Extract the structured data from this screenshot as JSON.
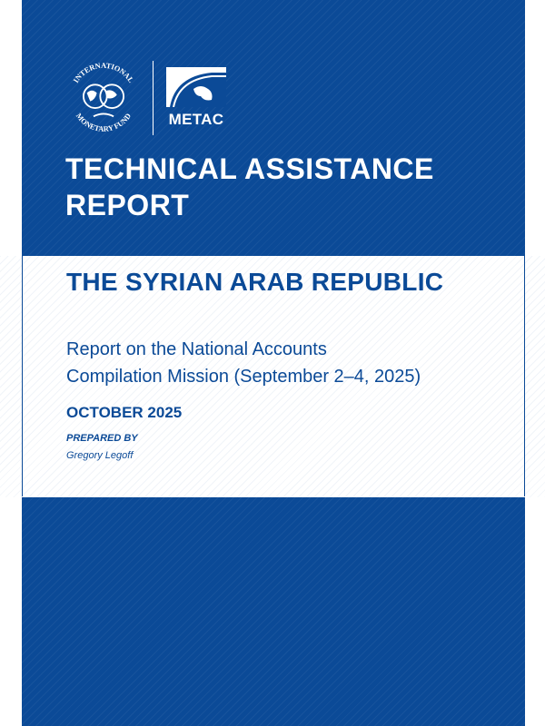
{
  "logos": {
    "imf": "INTERNATIONAL MONETARY FUND",
    "metac": "METAC"
  },
  "cover": {
    "title_line1": "TECHNICAL ASSISTANCE",
    "title_line2": "REPORT",
    "country": "THE SYRIAN ARAB REPUBLIC",
    "subtitle_line1": "Report on the National Accounts",
    "subtitle_line2": "Compilation Mission (September 2–4, 2025)",
    "date": "OCTOBER 2025",
    "prepared_by_label": "PREPARED BY",
    "author": "Gregory Legoff"
  },
  "colors": {
    "brand_blue": "#0b4a97",
    "white": "#ffffff"
  }
}
